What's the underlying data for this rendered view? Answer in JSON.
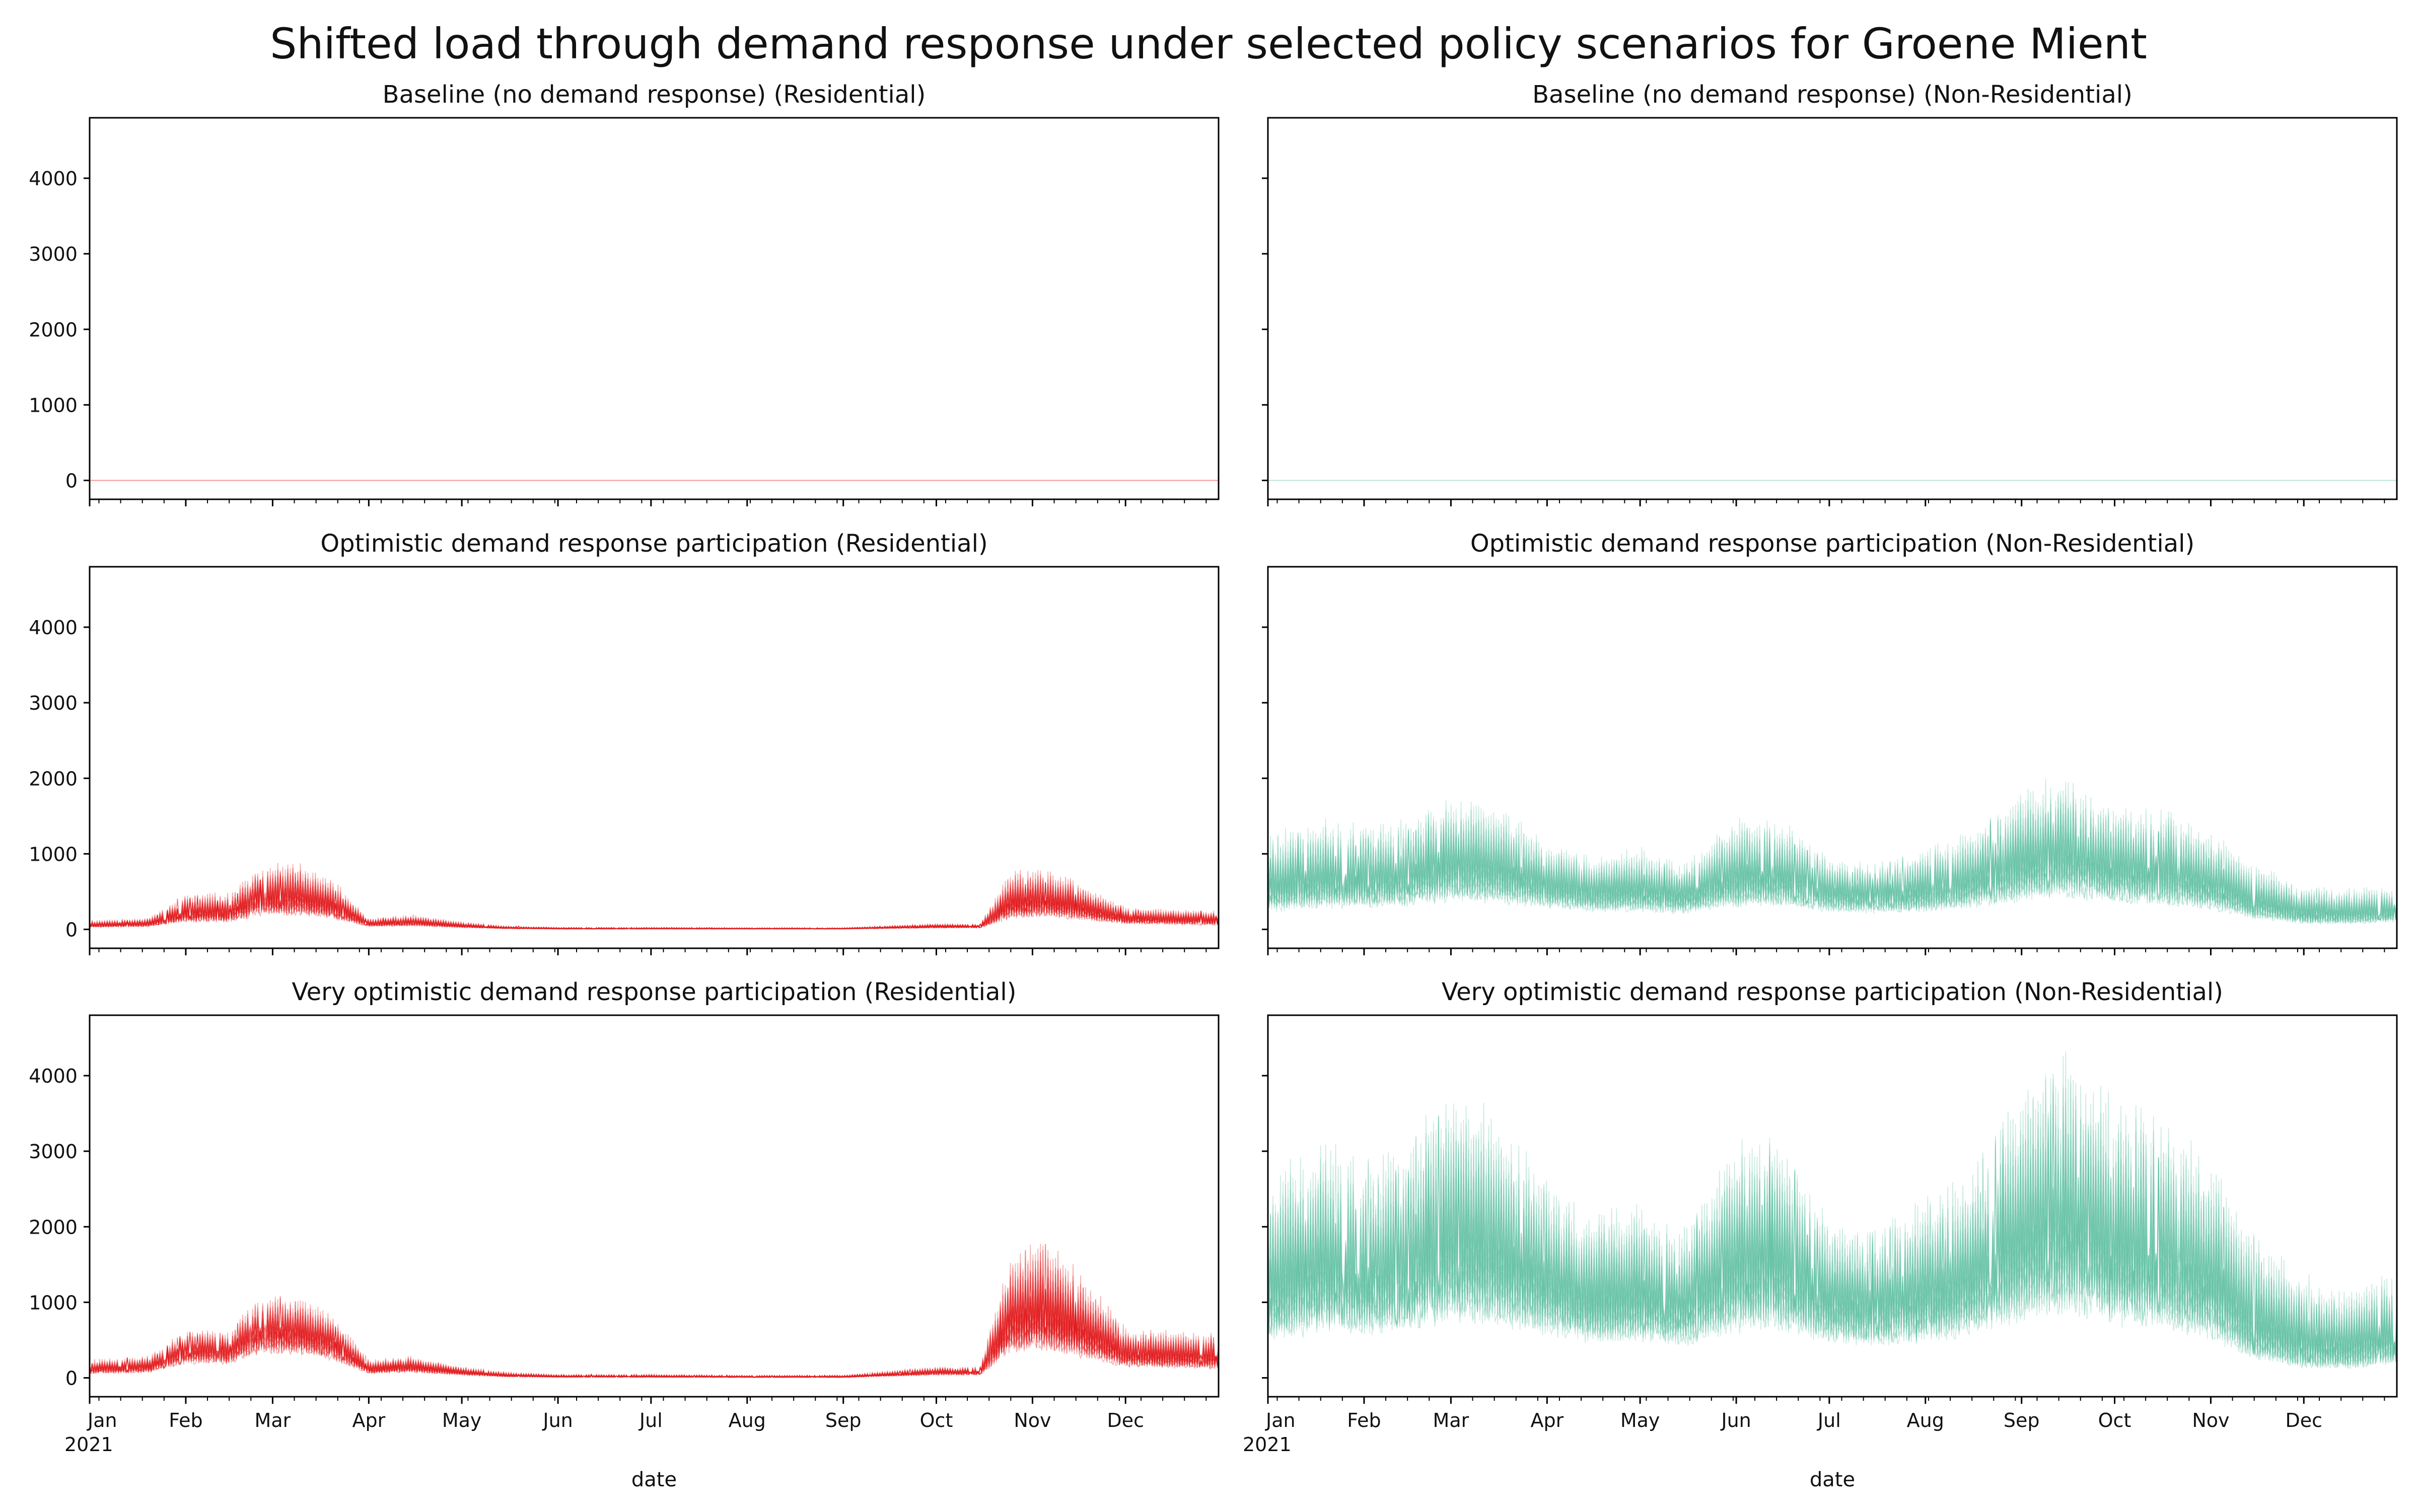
{
  "figure": {
    "title": "Shifted load through demand response under selected policy scenarios for Groene Mient"
  },
  "colors": {
    "residential": "#e31a1c",
    "non_residential": "#66c2a5"
  },
  "chart_data": [
    {
      "type": "line",
      "title": "Baseline (no demand response) (Residential)",
      "xlabel": "",
      "ylabel": "",
      "ylim": [
        -250,
        4800
      ],
      "x_range": [
        "2021-01-01",
        "2021-12-31"
      ],
      "yticks": [
        0,
        1000,
        2000,
        3000,
        4000
      ],
      "xtick_labels": [],
      "color": "#e31a1c",
      "envelope": {
        "x": [
          "2021-01-01",
          "2021-12-31"
        ],
        "high": [
          0,
          0
        ],
        "mid": [
          0,
          0
        ]
      }
    },
    {
      "type": "line",
      "title": "Baseline (no demand response) (Non-Residential)",
      "xlabel": "",
      "ylabel": "",
      "ylim": [
        -250,
        4800
      ],
      "x_range": [
        "2021-01-01",
        "2021-12-31"
      ],
      "yticks": [
        0,
        1000,
        2000,
        3000,
        4000
      ],
      "xtick_labels": [],
      "color": "#66c2a5",
      "envelope": {
        "x": [
          "2021-01-01",
          "2021-12-31"
        ],
        "high": [
          0,
          0
        ],
        "mid": [
          0,
          0
        ]
      }
    },
    {
      "type": "line",
      "title": "Optimistic demand response participation (Residential)",
      "xlabel": "",
      "ylabel": "",
      "ylim": [
        -250,
        4800
      ],
      "x_range": [
        "2021-01-01",
        "2021-12-31"
      ],
      "yticks": [
        0,
        1000,
        2000,
        3000,
        4000
      ],
      "xtick_labels": [],
      "color": "#e31a1c",
      "envelope": {
        "x": [
          "2021-01-01",
          "2021-01-20",
          "2021-02-01",
          "2021-02-15",
          "2021-02-25",
          "2021-03-10",
          "2021-03-20",
          "2021-04-01",
          "2021-04-15",
          "2021-05-01",
          "2021-05-15",
          "2021-06-01",
          "2021-07-01",
          "2021-08-01",
          "2021-09-01",
          "2021-10-01",
          "2021-10-15",
          "2021-10-25",
          "2021-11-05",
          "2021-11-15",
          "2021-12-01",
          "2021-12-15",
          "2021-12-31"
        ],
        "high": [
          120,
          150,
          500,
          500,
          900,
          900,
          700,
          150,
          200,
          100,
          50,
          30,
          30,
          25,
          25,
          80,
          80,
          780,
          850,
          650,
          300,
          280,
          250
        ],
        "mid": [
          60,
          80,
          200,
          200,
          400,
          400,
          300,
          80,
          100,
          50,
          20,
          10,
          10,
          10,
          10,
          40,
          40,
          300,
          350,
          280,
          150,
          140,
          120
        ]
      }
    },
    {
      "type": "line",
      "title": "Optimistic demand response participation (Non-Residential)",
      "xlabel": "",
      "ylabel": "",
      "ylim": [
        -250,
        4800
      ],
      "x_range": [
        "2021-01-01",
        "2021-12-31"
      ],
      "yticks": [
        0,
        1000,
        2000,
        3000,
        4000
      ],
      "xtick_labels": [],
      "color": "#66c2a5",
      "envelope": {
        "x": [
          "2021-01-01",
          "2021-01-20",
          "2021-02-01",
          "2021-02-15",
          "2021-03-01",
          "2021-03-15",
          "2021-04-01",
          "2021-04-15",
          "2021-05-01",
          "2021-05-15",
          "2021-06-01",
          "2021-06-15",
          "2021-07-01",
          "2021-07-15",
          "2021-08-01",
          "2021-08-15",
          "2021-09-01",
          "2021-09-15",
          "2021-10-01",
          "2021-10-15",
          "2021-11-01",
          "2021-11-15",
          "2021-12-01",
          "2021-12-15",
          "2021-12-31"
        ],
        "high": [
          1300,
          1500,
          1400,
          1500,
          1800,
          1700,
          1200,
          1000,
          1100,
          900,
          1500,
          1500,
          1000,
          900,
          1100,
          1300,
          1900,
          2100,
          1700,
          1700,
          1300,
          900,
          600,
          550,
          600
        ],
        "mid": [
          500,
          600,
          600,
          650,
          800,
          750,
          600,
          500,
          500,
          450,
          650,
          650,
          500,
          450,
          500,
          600,
          800,
          900,
          750,
          700,
          550,
          300,
          150,
          150,
          200
        ]
      }
    },
    {
      "type": "line",
      "title": "Very optimistic demand response participation (Residential)",
      "xlabel": "date",
      "ylabel": "",
      "ylim": [
        -250,
        4800
      ],
      "x_range": [
        "2021-01-01",
        "2021-12-31"
      ],
      "yticks": [
        0,
        1000,
        2000,
        3000,
        4000
      ],
      "xtick_labels": [
        "Jan",
        "Feb",
        "Mar",
        "Apr",
        "May",
        "Jun",
        "Jul",
        "Aug",
        "Sep",
        "Oct",
        "Nov",
        "Dec"
      ],
      "xtick_year": "2021",
      "color": "#e31a1c",
      "envelope": {
        "x": [
          "2021-01-01",
          "2021-01-20",
          "2021-02-01",
          "2021-02-15",
          "2021-02-25",
          "2021-03-10",
          "2021-03-20",
          "2021-04-01",
          "2021-04-15",
          "2021-05-01",
          "2021-05-15",
          "2021-06-01",
          "2021-07-01",
          "2021-08-01",
          "2021-09-01",
          "2021-10-01",
          "2021-10-15",
          "2021-10-25",
          "2021-11-05",
          "2021-11-15",
          "2021-12-01",
          "2021-12-15",
          "2021-12-31"
        ],
        "high": [
          250,
          300,
          650,
          650,
          1150,
          1100,
          900,
          250,
          300,
          150,
          80,
          50,
          50,
          40,
          40,
          150,
          150,
          1700,
          1900,
          1500,
          700,
          650,
          600
        ],
        "mid": [
          120,
          150,
          400,
          400,
          700,
          650,
          500,
          120,
          150,
          80,
          30,
          15,
          15,
          10,
          10,
          80,
          80,
          700,
          750,
          600,
          300,
          280,
          250
        ]
      }
    },
    {
      "type": "line",
      "title": "Very optimistic demand response participation (Non-Residential)",
      "xlabel": "date",
      "ylabel": "",
      "ylim": [
        -250,
        4800
      ],
      "x_range": [
        "2021-01-01",
        "2021-12-31"
      ],
      "yticks": [
        0,
        1000,
        2000,
        3000,
        4000
      ],
      "xtick_labels": [
        "Jan",
        "Feb",
        "Mar",
        "Apr",
        "May",
        "Jun",
        "Jul",
        "Aug",
        "Sep",
        "Oct",
        "Nov",
        "Dec"
      ],
      "xtick_year": "2021",
      "color": "#66c2a5",
      "envelope": {
        "x": [
          "2021-01-01",
          "2021-01-20",
          "2021-02-01",
          "2021-02-15",
          "2021-03-01",
          "2021-03-15",
          "2021-04-01",
          "2021-04-15",
          "2021-05-01",
          "2021-05-15",
          "2021-06-01",
          "2021-06-15",
          "2021-07-01",
          "2021-07-15",
          "2021-08-01",
          "2021-08-15",
          "2021-09-01",
          "2021-09-15",
          "2021-10-01",
          "2021-10-15",
          "2021-11-01",
          "2021-11-15",
          "2021-12-01",
          "2021-12-15",
          "2021-12-31"
        ],
        "high": [
          2800,
          3200,
          3000,
          3200,
          3900,
          3600,
          2700,
          2200,
          2400,
          2000,
          3300,
          3400,
          2100,
          2000,
          2400,
          2800,
          4000,
          4500,
          3700,
          3700,
          2900,
          1900,
          1400,
          1200,
          1500
        ],
        "mid": [
          1000,
          1300,
          1200,
          1300,
          1600,
          1500,
          1200,
          1000,
          1000,
          900,
          1300,
          1300,
          1000,
          900,
          1000,
          1200,
          1600,
          1800,
          1500,
          1400,
          1100,
          500,
          250,
          250,
          350
        ]
      }
    }
  ]
}
